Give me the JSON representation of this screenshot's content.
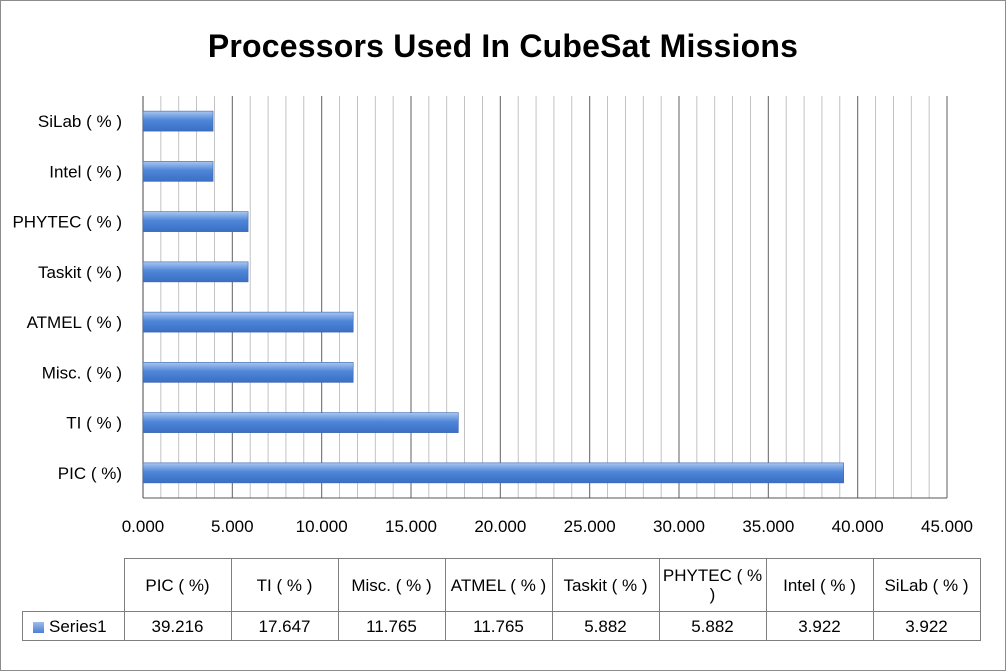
{
  "chart_data": {
    "type": "bar",
    "orientation": "horizontal",
    "title": "Processors Used In CubeSat Missions",
    "categories": [
      "PIC ( %)",
      "TI ( % )",
      "Misc.  ( % )",
      "ATMEL ( % )",
      "Taskit ( % )",
      "PHYTEC ( % )",
      "Intel ( % )",
      "SiLab ( % )"
    ],
    "series": [
      {
        "name": "Series1",
        "values": [
          39.216,
          17.647,
          11.765,
          11.765,
          5.882,
          5.882,
          3.922,
          3.922
        ]
      }
    ],
    "value_labels": [
      "39.216",
      "17.647",
      "11.765",
      "11.765",
      "5.882",
      "5.882",
      "3.922",
      "3.922"
    ],
    "xlim": [
      0,
      45
    ],
    "x_ticks": [
      "0.000",
      "5.000",
      "10.000",
      "15.000",
      "20.000",
      "25.000",
      "30.000",
      "35.000",
      "40.000",
      "45.000"
    ],
    "grid": "vertical major and minor",
    "legend": "data table below chart",
    "bar_color": "#4f86d8"
  }
}
